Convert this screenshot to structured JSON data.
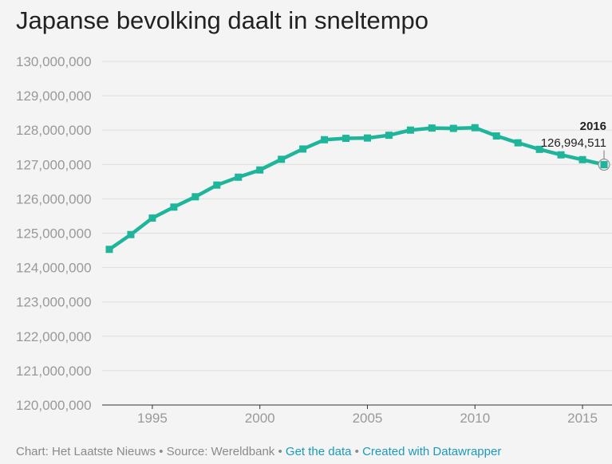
{
  "header": {
    "title": "Japanse bevolking daalt in sneltempo"
  },
  "footer": {
    "credit": "Chart: Het Laatste Nieuws",
    "sep1": " • ",
    "source": "Source: Wereldbank",
    "sep2": " • ",
    "get_data": "Get the data",
    "sep3": " • ",
    "created_with": "Created with Datawrapper"
  },
  "colors": {
    "line": "#1fb59a",
    "background": "#f4f4f4",
    "link": "#1a9bbd"
  },
  "chart_data": {
    "type": "line",
    "title": "Japanse bevolking daalt in sneltempo",
    "xlabel": "",
    "ylabel": "",
    "x": [
      1993,
      1994,
      1995,
      1996,
      1997,
      1998,
      1999,
      2000,
      2001,
      2002,
      2003,
      2004,
      2005,
      2006,
      2007,
      2008,
      2009,
      2010,
      2011,
      2012,
      2013,
      2014,
      2015,
      2016
    ],
    "series": [
      {
        "name": "",
        "values": [
          124530000,
          124960000,
          125440000,
          125760000,
          126060000,
          126400000,
          126630000,
          126840000,
          127150000,
          127450000,
          127720000,
          127760000,
          127770000,
          127850000,
          128000000,
          128060000,
          128050000,
          128070000,
          127830000,
          127630000,
          127440000,
          127280000,
          127140000,
          126994511
        ]
      }
    ],
    "ylim": [
      120000000,
      130000000
    ],
    "yticks": [
      120000000,
      121000000,
      122000000,
      123000000,
      124000000,
      125000000,
      126000000,
      127000000,
      128000000,
      129000000,
      130000000
    ],
    "yticklabels": [
      "120,000,000",
      "121,000,000",
      "122,000,000",
      "123,000,000",
      "124,000,000",
      "125,000,000",
      "126,000,000",
      "127,000,000",
      "128,000,000",
      "129,000,000",
      "130,000,000"
    ],
    "xticks": [
      1995,
      2000,
      2005,
      2010,
      2015
    ],
    "xticklabels": [
      "1995",
      "2000",
      "2005",
      "2010",
      "2015"
    ],
    "grid": true,
    "annotation": {
      "year": 2016,
      "label_year": "2016",
      "label_value": "126,994,511"
    }
  }
}
